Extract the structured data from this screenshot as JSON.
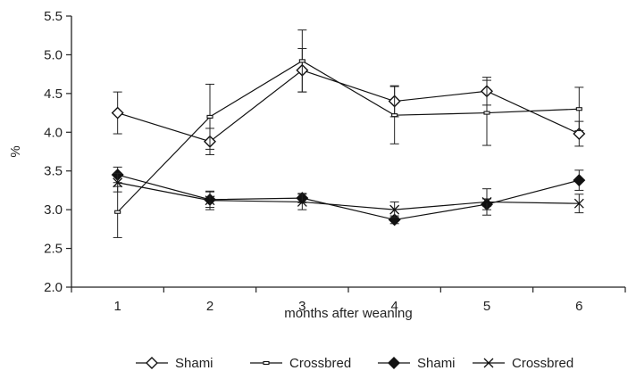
{
  "chart_data": {
    "type": "line",
    "title": "",
    "xlabel": "months after weaning",
    "ylabel": "%",
    "x": [
      1,
      2,
      3,
      4,
      5,
      6
    ],
    "xlim": [
      0.5,
      6.5
    ],
    "ylim": [
      2.0,
      5.5
    ],
    "yticks": [
      "2.0",
      "2.5",
      "3.0",
      "3.5",
      "4.0",
      "4.5",
      "5.0",
      "5.5"
    ],
    "xticks": [
      "1",
      "2",
      "3",
      "4",
      "5",
      "6"
    ],
    "grid": false,
    "legend_position": "bottom",
    "series": [
      {
        "name": "Shami",
        "marker": "diamond-open",
        "values": [
          4.25,
          3.88,
          4.8,
          4.4,
          4.53,
          3.98
        ],
        "err": [
          0.27,
          0.17,
          0.28,
          0.2,
          0.18,
          0.16
        ]
      },
      {
        "name": "Crossbred",
        "marker": "dash",
        "values": [
          2.97,
          4.2,
          4.92,
          4.22,
          4.25,
          4.3
        ],
        "err": [
          0.33,
          0.42,
          0.4,
          0.37,
          0.42,
          0.28
        ]
      },
      {
        "name": "Shami",
        "marker": "diamond-filled",
        "values": [
          3.45,
          3.13,
          3.15,
          2.87,
          3.07,
          3.38
        ],
        "err": [
          0.1,
          0.1,
          0.06,
          0.05,
          0.07,
          0.13
        ]
      },
      {
        "name": "Crossbred",
        "marker": "x",
        "values": [
          3.35,
          3.12,
          3.1,
          3.0,
          3.1,
          3.08
        ],
        "err": [
          0.12,
          0.12,
          0.1,
          0.1,
          0.17,
          0.12
        ]
      }
    ]
  }
}
